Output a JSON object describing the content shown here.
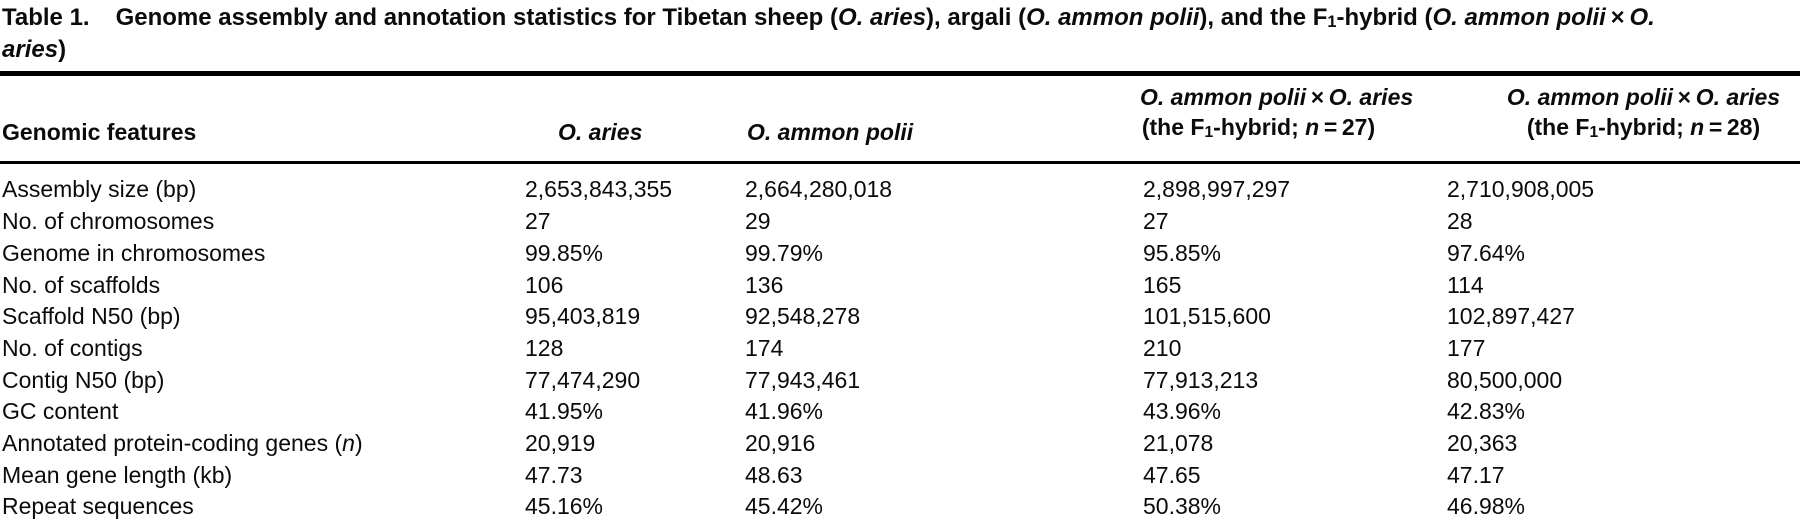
{
  "colors": {
    "text": "#0b0b0b",
    "rule": "#000000",
    "background": "#ffffff"
  },
  "title": {
    "label": "Table 1.",
    "line1": [
      "Genome assembly and annotation statistics for Tibetan sheep (",
      {
        "t": "O. aries",
        "i": true
      },
      "), argali (",
      {
        "t": "O. ammon polii",
        "i": true
      },
      "), and the F",
      {
        "t": "1",
        "sub": true
      },
      "-hybrid (",
      {
        "t": "O. ammon polii",
        "i": true
      },
      " × ",
      {
        "t": "O.",
        "i": true
      }
    ],
    "line2": [
      {
        "t": "aries",
        "i": true
      },
      ")"
    ]
  },
  "table": {
    "columns": [
      {
        "id": "genomic-features",
        "lines": [
          [
            "Genomic features"
          ]
        ]
      },
      {
        "id": "o-aries",
        "lines": [
          [
            {
              "t": "O. aries",
              "i": true
            }
          ]
        ]
      },
      {
        "id": "o-ammon-polii",
        "lines": [
          [
            {
              "t": "O. ammon polii",
              "i": true
            }
          ]
        ]
      },
      {
        "id": "f1-hybrid-n27",
        "lines": [
          [
            {
              "t": "O. ammon polii",
              "i": true
            },
            " × ",
            {
              "t": "O. aries",
              "i": true
            }
          ],
          [
            "(the F",
            {
              "t": "1",
              "sub": true
            },
            "-hybrid; ",
            {
              "t": "n",
              "i": true
            },
            " = 27)"
          ]
        ]
      },
      {
        "id": "f1-hybrid-n28",
        "lines": [
          [
            {
              "t": "O. ammon polii",
              "i": true
            },
            " × ",
            {
              "t": "O. aries",
              "i": true
            }
          ],
          [
            "(the F",
            {
              "t": "1",
              "sub": true
            },
            "-hybrid; ",
            {
              "t": "n",
              "i": true
            },
            " = 28)"
          ]
        ]
      }
    ],
    "rows": [
      {
        "feature": [
          "Assembly size (bp)"
        ],
        "values": [
          "2,653,843,355",
          "2,664,280,018",
          "2,898,997,297",
          "2,710,908,005"
        ]
      },
      {
        "feature": [
          "No. of chromosomes"
        ],
        "values": [
          "27",
          "29",
          "27",
          "28"
        ]
      },
      {
        "feature": [
          "Genome in chromosomes"
        ],
        "values": [
          "99.85%",
          "99.79%",
          "95.85%",
          "97.64%"
        ]
      },
      {
        "feature": [
          "No. of scaffolds"
        ],
        "values": [
          "106",
          "136",
          "165",
          "114"
        ]
      },
      {
        "feature": [
          "Scaffold N50 (bp)"
        ],
        "values": [
          "95,403,819",
          "92,548,278",
          "101,515,600",
          "102,897,427"
        ]
      },
      {
        "feature": [
          "No. of contigs"
        ],
        "values": [
          "128",
          "174",
          "210",
          "177"
        ]
      },
      {
        "feature": [
          "Contig N50 (bp)"
        ],
        "values": [
          "77,474,290",
          "77,943,461",
          "77,913,213",
          "80,500,000"
        ]
      },
      {
        "feature": [
          "GC content"
        ],
        "values": [
          "41.95%",
          "41.96%",
          "43.96%",
          "42.83%"
        ]
      },
      {
        "feature": [
          "Annotated protein-coding genes (",
          {
            "t": "n",
            "i": true
          },
          ")"
        ],
        "values": [
          "20,919",
          "20,916",
          "21,078",
          "20,363"
        ]
      },
      {
        "feature": [
          "Mean gene length (kb)"
        ],
        "values": [
          "47.73",
          "48.63",
          "47.65",
          "47.17"
        ]
      },
      {
        "feature": [
          "Repeat sequences"
        ],
        "values": [
          "45.16%",
          "45.42%",
          "50.38%",
          "46.98%"
        ]
      }
    ]
  }
}
